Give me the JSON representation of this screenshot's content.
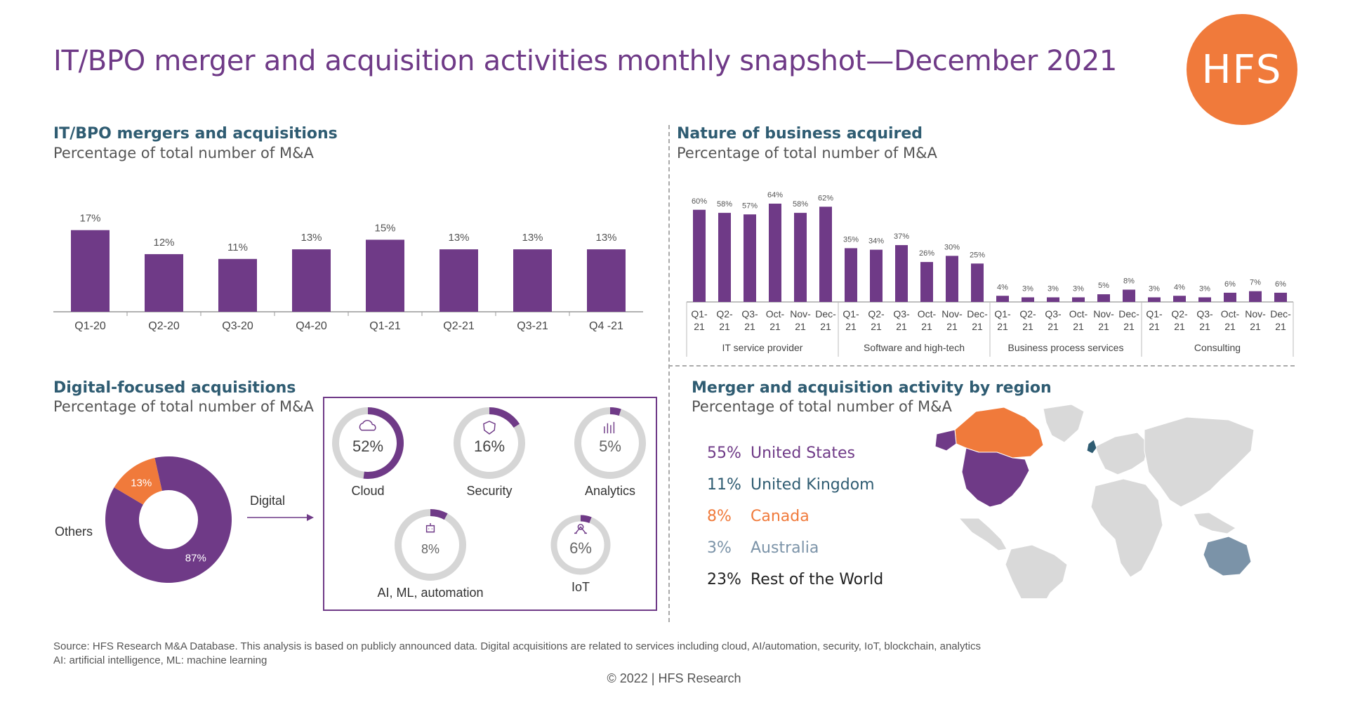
{
  "header": {
    "title": "IT/BPO merger and acquisition activities monthly snapshot—December 2021",
    "logo_text": "HFS"
  },
  "colors": {
    "purple": "#6f3a87",
    "orange": "#f07a3b",
    "teal": "#2f5c72",
    "slate": "#7b93a8",
    "gray": "#d6d6d6"
  },
  "sections": {
    "mergers": {
      "title": "IT/BPO mergers and acquisitions",
      "subtitle": "Percentage of total number of M&A"
    },
    "nature": {
      "title": "Nature of business acquired",
      "subtitle": "Percentage of total number of M&A"
    },
    "digital": {
      "title": "Digital-focused acquisitions",
      "subtitle": "Percentage of total number of M&A"
    },
    "region": {
      "title": "Merger and acquisition activity by region",
      "subtitle": "Percentage of total number of M&A"
    }
  },
  "chart_data": [
    {
      "type": "bar",
      "categories": [
        "Q1-20",
        "Q2-20",
        "Q3-20",
        "Q4-20",
        "Q1-21",
        "Q2-21",
        "Q3-21",
        "Q4 -21"
      ],
      "values": [
        17,
        12,
        11,
        13,
        15,
        13,
        13,
        13
      ],
      "value_labels": [
        "17%",
        "12%",
        "11%",
        "13%",
        "15%",
        "13%",
        "13%",
        "13%"
      ],
      "ylim": [
        0,
        20
      ]
    },
    {
      "type": "bar",
      "groups": [
        {
          "name": "IT service provider",
          "categories": [
            "Q1-21",
            "Q2-21",
            "Q3-21",
            "Oct-21",
            "Nov-21",
            "Dec-21"
          ],
          "values": [
            60,
            58,
            57,
            64,
            58,
            62
          ],
          "value_labels": [
            "60%",
            "58%",
            "57%",
            "64%",
            "58%",
            "62%"
          ]
        },
        {
          "name": "Software and high-tech",
          "categories": [
            "Q1-21",
            "Q2-21",
            "Q3-21",
            "Oct-21",
            "Nov-21",
            "Dec-21"
          ],
          "values": [
            35,
            34,
            37,
            26,
            30,
            25
          ],
          "value_labels": [
            "35%",
            "34%",
            "37%",
            "26%",
            "30%",
            "25%"
          ]
        },
        {
          "name": "Business process services",
          "categories": [
            "Q1-21",
            "Q2-21",
            "Q3-21",
            "Oct-21",
            "Nov-21",
            "Dec-21"
          ],
          "values": [
            4,
            3,
            3,
            3,
            5,
            8
          ],
          "value_labels": [
            "4%",
            "3%",
            "3%",
            "3%",
            "5%",
            "8%"
          ]
        },
        {
          "name": "Consulting",
          "categories": [
            "Q1-21",
            "Q2-21",
            "Q3-21",
            "Oct-21",
            "Nov-21",
            "Dec-21"
          ],
          "values": [
            3,
            4,
            3,
            6,
            7,
            6
          ],
          "value_labels": [
            "3%",
            "4%",
            "3%",
            "6%",
            "7%",
            "6%"
          ]
        }
      ],
      "ylim": [
        0,
        70
      ]
    },
    {
      "type": "pie",
      "donut": true,
      "slices": [
        {
          "label": "Digital",
          "value": 87,
          "value_label": "87%",
          "color": "#6f3a87"
        },
        {
          "label": "Others",
          "value": 13,
          "value_label": "13%",
          "color": "#f07a3b"
        }
      ]
    },
    {
      "type": "pie",
      "gauges": [
        {
          "label": "Cloud",
          "value": 52,
          "value_label": "52%",
          "icon": "cloud-icon"
        },
        {
          "label": "Security",
          "value": 16,
          "value_label": "16%",
          "icon": "shield-icon"
        },
        {
          "label": "Analytics",
          "value": 5,
          "value_label": "5%",
          "icon": "bar-chart-icon"
        },
        {
          "label": "AI, ML, automation",
          "value": 8,
          "value_label": "8%",
          "icon": "robot-icon"
        },
        {
          "label": "IoT",
          "value": 6,
          "value_label": "6%",
          "icon": "network-icon"
        }
      ]
    }
  ],
  "regions": [
    {
      "pct": "55%",
      "name": "United States",
      "color": "#6f3a87"
    },
    {
      "pct": "11%",
      "name": "United Kingdom",
      "color": "#2f5c72"
    },
    {
      "pct": "8%",
      "name": "Canada",
      "color": "#f07a3b"
    },
    {
      "pct": "3%",
      "name": "Australia",
      "color": "#7b93a8"
    },
    {
      "pct": "23%",
      "name": "Rest of the World",
      "color": "#222222"
    }
  ],
  "footer": {
    "source": "Source: HFS Research M&A Database. This analysis is based on publicly announced data. Digital acquisitions are related to services including cloud, AI/automation, security, IoT, blockchain, analytics",
    "abbrev": "AI: artificial intelligence, ML: machine learning",
    "copyright": "© 2022 | HFS Research"
  }
}
